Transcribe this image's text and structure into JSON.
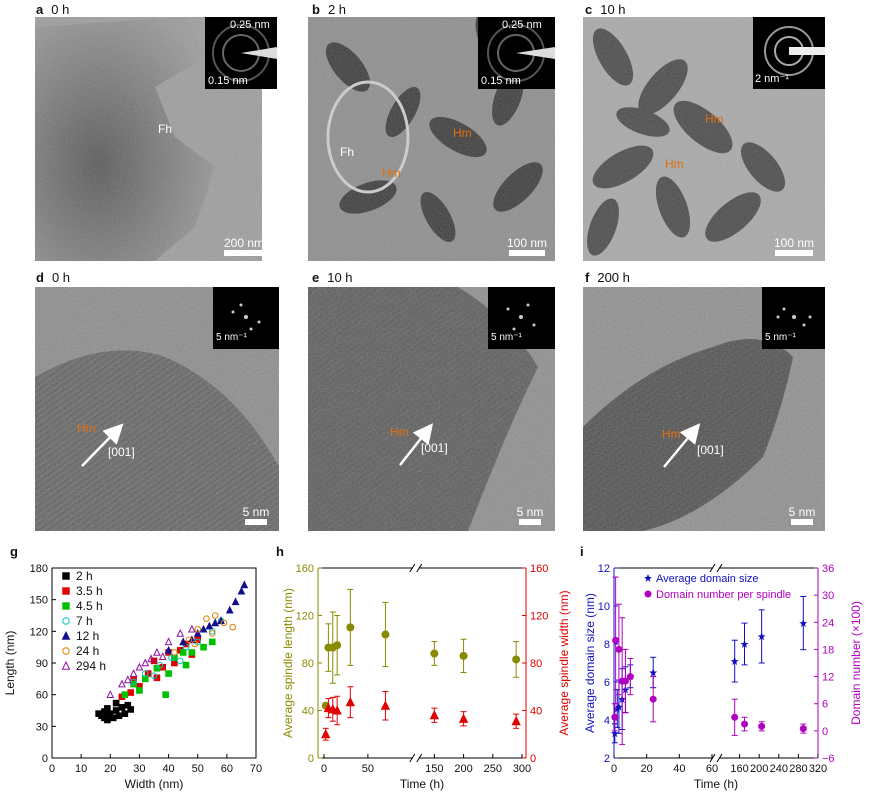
{
  "panels": {
    "a": {
      "letter": "a",
      "time": "0 h",
      "scale": "200 nm",
      "labels": [
        "Fh"
      ],
      "diff": [
        "0.25 nm",
        "0.15 nm"
      ]
    },
    "b": {
      "letter": "b",
      "time": "2 h",
      "scale": "100 nm",
      "labels": [
        "Fh",
        "Hm",
        "Hm"
      ],
      "diff": [
        "0.25 nm",
        "0.15 nm"
      ]
    },
    "c": {
      "letter": "c",
      "time": "10 h",
      "scale": "100 nm",
      "labels": [
        "Hm",
        "Hm"
      ],
      "diff": [
        "2 nm⁻¹"
      ]
    },
    "d": {
      "letter": "d",
      "time": "0 h",
      "scale": "5 nm",
      "hm": "Hm",
      "dir": "[001]",
      "diff": "5 nm⁻¹"
    },
    "e": {
      "letter": "e",
      "time": "10 h",
      "scale": "5 nm",
      "hm": "Hm",
      "dir": "[001]",
      "diff": "5 nm⁻¹"
    },
    "f": {
      "letter": "f",
      "time": "200 h",
      "scale": "5 nm",
      "hm": "Hm",
      "dir": "[001]",
      "diff": "5 nm⁻¹"
    }
  },
  "colors": {
    "olive": "#8a8a00",
    "red": "#e00000",
    "blue": "#1010c0",
    "purple": "#b000c0"
  },
  "chart_data": [
    {
      "panel": "g",
      "type": "scatter",
      "xlabel": "Width (nm)",
      "ylabel": "Length (nm)",
      "xlim": [
        0,
        70
      ],
      "ylim": [
        0,
        180
      ],
      "xticks": [
        "0",
        "10",
        "20",
        "30",
        "40",
        "50",
        "60",
        "70"
      ],
      "yticks": [
        "0",
        "30",
        "60",
        "90",
        "120",
        "150",
        "180"
      ],
      "legend_position": "top-left",
      "series": [
        {
          "name": "2 h",
          "color": "#000000",
          "marker": "square-filled",
          "points": [
            [
              16,
              42
            ],
            [
              17,
              40
            ],
            [
              18,
              38
            ],
            [
              18,
              44
            ],
            [
              19,
              36
            ],
            [
              20,
              42
            ],
            [
              21,
              38
            ],
            [
              22,
              45
            ],
            [
              23,
              40
            ],
            [
              24,
              48
            ],
            [
              25,
              42
            ],
            [
              26,
              50
            ],
            [
              19,
              47
            ],
            [
              22,
              52
            ],
            [
              27,
              46
            ]
          ]
        },
        {
          "name": "3.5 h",
          "color": "#e00000",
          "marker": "square-filled",
          "points": [
            [
              24,
              58
            ],
            [
              27,
              62
            ],
            [
              30,
              68
            ],
            [
              33,
              80
            ],
            [
              35,
              92
            ],
            [
              38,
              86
            ],
            [
              40,
              100
            ],
            [
              44,
              102
            ],
            [
              46,
              108
            ],
            [
              50,
              112
            ],
            [
              28,
              74
            ],
            [
              36,
              76
            ],
            [
              42,
              90
            ],
            [
              48,
              98
            ]
          ]
        },
        {
          "name": "4.5 h",
          "color": "#00c000",
          "marker": "square-filled",
          "points": [
            [
              25,
              60
            ],
            [
              28,
              70
            ],
            [
              32,
              75
            ],
            [
              36,
              85
            ],
            [
              39,
              60
            ],
            [
              42,
              95
            ],
            [
              45,
              100
            ],
            [
              48,
              100
            ],
            [
              52,
              105
            ],
            [
              55,
              110
            ],
            [
              30,
              64
            ],
            [
              40,
              80
            ],
            [
              46,
              88
            ]
          ]
        },
        {
          "name": "7 h",
          "color": "#00c8c8",
          "marker": "circle-open",
          "points": [
            [
              28,
              72
            ],
            [
              32,
              80
            ],
            [
              37,
              88
            ],
            [
              41,
              95
            ],
            [
              46,
              105
            ],
            [
              50,
              110
            ],
            [
              55,
              120
            ],
            [
              58,
              130
            ],
            [
              35,
              78
            ],
            [
              44,
              92
            ]
          ]
        },
        {
          "name": "12 h",
          "color": "#10108c",
          "marker": "triangle-filled",
          "points": [
            [
              40,
              102
            ],
            [
              45,
              110
            ],
            [
              50,
              118
            ],
            [
              54,
              125
            ],
            [
              58,
              130
            ],
            [
              61,
              140
            ],
            [
              63,
              148
            ],
            [
              65,
              158
            ],
            [
              66,
              164
            ],
            [
              52,
              122
            ],
            [
              48,
              112
            ],
            [
              56,
              128
            ]
          ]
        },
        {
          "name": "24 h",
          "color": "#e08000",
          "marker": "circle-open",
          "points": [
            [
              42,
              100
            ],
            [
              47,
              112
            ],
            [
              50,
              122
            ],
            [
              53,
              132
            ],
            [
              56,
              135
            ],
            [
              59,
              128
            ],
            [
              62,
              124
            ],
            [
              49,
              108
            ],
            [
              55,
              118
            ]
          ]
        },
        {
          "name": "294 h",
          "color": "#8a10a0",
          "marker": "triangle-open",
          "points": [
            [
              20,
              60
            ],
            [
              24,
              70
            ],
            [
              28,
              80
            ],
            [
              32,
              90
            ],
            [
              36,
              100
            ],
            [
              40,
              110
            ],
            [
              44,
              118
            ],
            [
              48,
              122
            ],
            [
              30,
              86
            ],
            [
              38,
              96
            ],
            [
              26,
              74
            ],
            [
              34,
              94
            ]
          ]
        }
      ]
    },
    {
      "panel": "h",
      "type": "scatter",
      "xlabel": "Time (h)",
      "ylabel_left": "Average spindle length (nm)",
      "ylabel_right": "Average spindle width (nm)",
      "ylim_left": [
        0,
        160
      ],
      "ylim_right": [
        0,
        160
      ],
      "yticks": [
        "0",
        "40",
        "80",
        "120",
        "160"
      ],
      "xticks": [
        "0",
        "50",
        "150",
        "200",
        "250",
        "300"
      ],
      "x_axis_break": "between 100 and 150",
      "series": [
        {
          "name": "Average spindle length",
          "axis": "left",
          "color": "#8a8a00",
          "marker": "circle-filled",
          "points": [
            [
              2,
              44,
              0
            ],
            [
              5,
              93,
              20
            ],
            [
              10,
              93,
              30
            ],
            [
              15,
              95,
              25
            ],
            [
              30,
              110,
              32
            ],
            [
              70,
              104,
              27
            ],
            [
              150,
              88,
              10
            ],
            [
              200,
              86,
              14
            ],
            [
              290,
              83,
              15
            ]
          ]
        },
        {
          "name": "Average spindle width",
          "axis": "right",
          "color": "#e00000",
          "marker": "triangle-filled",
          "points": [
            [
              2,
              20,
              5
            ],
            [
              5,
              42,
              8
            ],
            [
              10,
              41,
              10
            ],
            [
              15,
              40,
              12
            ],
            [
              30,
              47,
              13
            ],
            [
              70,
              44,
              12
            ],
            [
              150,
              36,
              6
            ],
            [
              200,
              33,
              6
            ],
            [
              290,
              31,
              6
            ]
          ]
        }
      ]
    },
    {
      "panel": "i",
      "type": "scatter",
      "xlabel": "Time (h)",
      "ylabel_left": "Average domain size (nm)",
      "ylabel_right": "Domain number (×100)",
      "ylim_left": [
        2,
        12
      ],
      "ylim_right": [
        -6,
        36
      ],
      "yticks_left": [
        "2",
        "4",
        "6",
        "8",
        "10",
        "12"
      ],
      "yticks_right": [
        "−6",
        "0",
        "6",
        "12",
        "18",
        "24",
        "30",
        "36"
      ],
      "xticks": [
        "0",
        "20",
        "40",
        "60",
        "160",
        "200",
        "240",
        "280",
        "320"
      ],
      "x_axis_break": "between 60 and 120",
      "legend": [
        "Average domain size",
        "Domain number per spindle"
      ],
      "series": [
        {
          "name": "Average domain size",
          "axis": "left",
          "color": "#1010c0",
          "marker": "star",
          "points": [
            [
              0.5,
              3.3,
              0.5
            ],
            [
              2,
              4.6,
              1
            ],
            [
              3,
              4.7,
              1.4
            ],
            [
              5,
              5.1,
              1.6
            ],
            [
              7,
              5.6,
              1.2
            ],
            [
              10,
              6.3,
              0.6
            ],
            [
              24,
              6.5,
              0.8
            ],
            [
              150,
              7.1,
              1.1
            ],
            [
              170,
              8,
              1.1
            ],
            [
              205,
              8.4,
              1.4
            ],
            [
              290,
              9.1,
              1.4
            ]
          ]
        },
        {
          "name": "Domain number per spindle",
          "axis": "right",
          "color": "#b000c0",
          "marker": "circle-filled",
          "points": [
            [
              0.5,
              3,
              3
            ],
            [
              1,
              20,
              14
            ],
            [
              3,
              18,
              10
            ],
            [
              5,
              11,
              14
            ],
            [
              7,
              11,
              7
            ],
            [
              10,
              12,
              4
            ],
            [
              24,
              7,
              5
            ],
            [
              150,
              3,
              4
            ],
            [
              170,
              1.5,
              1.5
            ],
            [
              205,
              1,
              1
            ],
            [
              290,
              0.5,
              1
            ]
          ]
        }
      ]
    }
  ]
}
